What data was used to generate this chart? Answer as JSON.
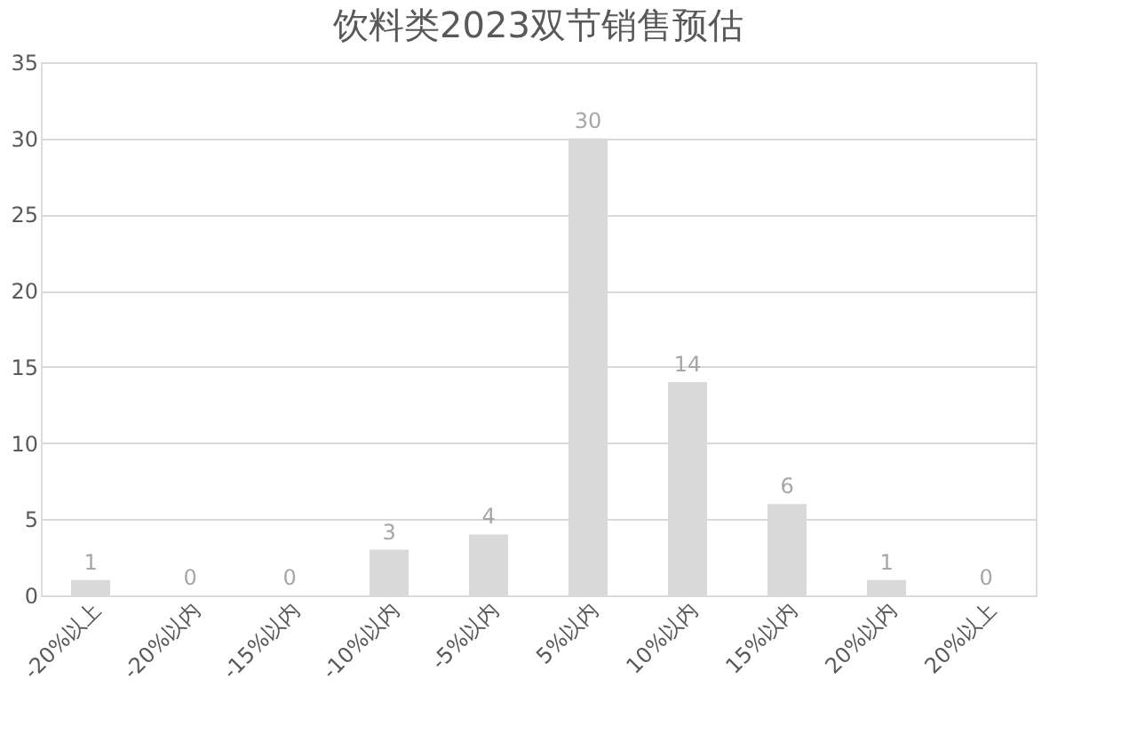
{
  "chart_data": {
    "type": "bar",
    "title": "饮料类2023双节销售预估",
    "categories": [
      "-20%以上",
      "-20%以内",
      "-15%以内",
      "-10%以内",
      "-5%以内",
      "5%以内",
      "10%以内",
      "15%以内",
      "20%以内",
      "20%以上"
    ],
    "values": [
      1,
      0,
      0,
      3,
      4,
      30,
      14,
      6,
      1,
      0
    ],
    "color": "#d9d9d9",
    "ylim": [
      0,
      35
    ],
    "yticks": [
      0,
      5,
      10,
      15,
      20,
      25,
      30,
      35
    ],
    "grid": "y",
    "data_labels": true
  }
}
